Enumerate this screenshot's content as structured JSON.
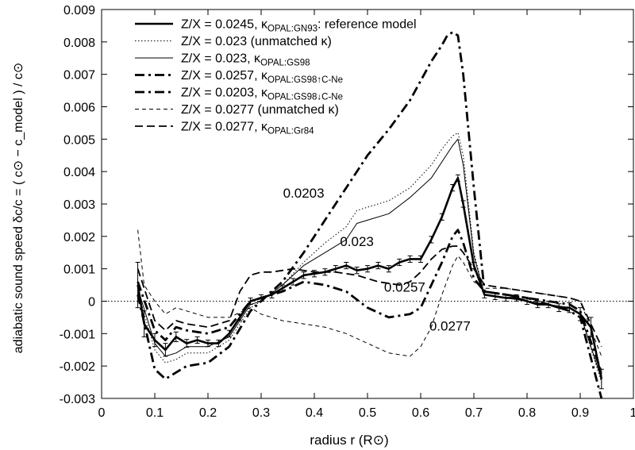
{
  "chart_data": {
    "type": "line",
    "title": "",
    "xlabel": "radius  r  (R⊙)",
    "ylabel": "adiabatic sound speed   δc/c = ( c⊙ − c_model ) / c⊙",
    "xlim": [
      0,
      1
    ],
    "ylim": [
      -0.003,
      0.009
    ],
    "x_ticks": [
      "0",
      "0.1",
      "0.2",
      "0.3",
      "0.4",
      "0.5",
      "0.6",
      "0.7",
      "0.8",
      "0.9",
      "1"
    ],
    "y_ticks": [
      "-0.003",
      "-0.002",
      "-0.001",
      "0",
      "0.001",
      "0.002",
      "0.003",
      "0.004",
      "0.005",
      "0.006",
      "0.007",
      "0.008",
      "0.009"
    ],
    "grid": false,
    "legend_position": "top-left",
    "series": [
      {
        "name": "Z/X = 0.0245, κ_OPAL:GN93: reference model",
        "legend_main": "Z/X = 0.0245, κ",
        "legend_sub": "OPAL:GN93",
        "legend_tail": ": reference model",
        "style": "thick-solid",
        "error_bars": true,
        "x": [
          0.068,
          0.08,
          0.1,
          0.12,
          0.14,
          0.16,
          0.18,
          0.2,
          0.22,
          0.24,
          0.26,
          0.28,
          0.3,
          0.32,
          0.34,
          0.36,
          0.38,
          0.4,
          0.42,
          0.44,
          0.46,
          0.48,
          0.5,
          0.52,
          0.54,
          0.56,
          0.58,
          0.6,
          0.62,
          0.64,
          0.66,
          0.67,
          0.68,
          0.7,
          0.72,
          0.74,
          0.76,
          0.78,
          0.8,
          0.82,
          0.84,
          0.86,
          0.88,
          0.9,
          0.92,
          0.94
        ],
        "y": [
          0.0005,
          -0.0007,
          -0.0012,
          -0.0015,
          -0.0011,
          -0.0013,
          -0.0012,
          -0.0013,
          -0.0013,
          -0.001,
          -0.0005,
          0.0,
          0.0001,
          0.0002,
          0.0004,
          0.0006,
          0.0008,
          0.00085,
          0.0009,
          0.001,
          0.0011,
          0.00095,
          0.001,
          0.0011,
          0.001,
          0.0012,
          0.0013,
          0.0013,
          0.0019,
          0.0026,
          0.0035,
          0.0038,
          0.003,
          0.0011,
          0.0002,
          0.00015,
          0.0001,
          0.0001,
          0.0,
          -0.0001,
          -0.0001,
          -0.0002,
          -0.0002,
          -0.0004,
          -0.0008,
          -0.0024
        ],
        "errors": [
          0.0007,
          0.0004,
          0.0002,
          0.0002,
          0.00015,
          0.00012,
          0.0001,
          0.0001,
          0.0001,
          0.0001,
          0.0001,
          0.0001,
          0.0001,
          0.0001,
          0.0001,
          0.0001,
          0.0001,
          0.0001,
          0.0001,
          0.0001,
          0.0001,
          0.0001,
          0.0001,
          0.0001,
          0.0001,
          0.0001,
          0.0001,
          0.0001,
          0.0001,
          0.0001,
          0.0001,
          0.0001,
          0.0001,
          0.0001,
          0.0001,
          0.0001,
          0.0001,
          0.0001,
          0.0001,
          0.0001,
          0.0001,
          0.00012,
          0.00015,
          0.0002,
          0.0003,
          0.0003
        ]
      },
      {
        "name": "Z/X = 0.023 (unmatched κ)",
        "legend_main": "Z/X = 0.023 (unmatched κ)",
        "legend_sub": "",
        "legend_tail": "",
        "style": "dotted",
        "x": [
          0.068,
          0.1,
          0.12,
          0.14,
          0.16,
          0.2,
          0.24,
          0.28,
          0.3,
          0.34,
          0.38,
          0.42,
          0.46,
          0.48,
          0.5,
          0.54,
          0.58,
          0.62,
          0.64,
          0.66,
          0.67,
          0.68,
          0.7,
          0.72,
          0.76,
          0.8,
          0.84,
          0.88,
          0.9,
          0.94
        ],
        "y": [
          0.0003,
          -0.0015,
          -0.0019,
          -0.0018,
          -0.0016,
          -0.0016,
          -0.0012,
          -0.0002,
          0.0,
          0.0005,
          0.0012,
          0.0018,
          0.0023,
          0.0028,
          0.0029,
          0.0031,
          0.0035,
          0.0042,
          0.0047,
          0.0051,
          0.0052,
          0.0045,
          0.0015,
          0.0002,
          0.0001,
          0.0,
          -0.0001,
          -0.0002,
          -0.0004,
          -0.0025
        ]
      },
      {
        "name": "Z/X = 0.023, κ_OPAL:GS98",
        "legend_main": "Z/X = 0.023, κ",
        "legend_sub": "OPAL:GS98",
        "legend_tail": "",
        "style": "thin-solid",
        "x": [
          0.068,
          0.1,
          0.12,
          0.14,
          0.16,
          0.2,
          0.24,
          0.28,
          0.3,
          0.34,
          0.38,
          0.42,
          0.46,
          0.48,
          0.5,
          0.54,
          0.58,
          0.62,
          0.64,
          0.66,
          0.67,
          0.68,
          0.7,
          0.72,
          0.76,
          0.8,
          0.84,
          0.88,
          0.9,
          0.94
        ],
        "y": [
          0.0004,
          -0.0013,
          -0.0017,
          -0.0016,
          -0.0014,
          -0.0014,
          -0.0011,
          -0.0001,
          0.0,
          0.0005,
          0.0011,
          0.0015,
          0.0019,
          0.0024,
          0.0025,
          0.0027,
          0.0032,
          0.0038,
          0.0043,
          0.0048,
          0.005,
          0.0042,
          0.0014,
          0.0002,
          0.0001,
          0.0,
          -0.0001,
          -0.0002,
          -0.0004,
          -0.0024
        ]
      },
      {
        "name": "Z/X = 0.0257, κ_OPAL:GS98↑C-Ne",
        "legend_main": "Z/X = 0.0257, κ",
        "legend_sub": "OPAL:GS98↑C-Ne",
        "legend_tail": "",
        "style": "thick-dashdot",
        "x": [
          0.068,
          0.1,
          0.12,
          0.14,
          0.16,
          0.2,
          0.24,
          0.28,
          0.3,
          0.34,
          0.38,
          0.42,
          0.46,
          0.5,
          0.54,
          0.58,
          0.6,
          0.62,
          0.64,
          0.66,
          0.67,
          0.68,
          0.7,
          0.72,
          0.76,
          0.8,
          0.84,
          0.88,
          0.9,
          0.94
        ],
        "y": [
          0.0006,
          -0.0009,
          -0.0012,
          -0.0008,
          -0.0009,
          -0.001,
          -0.0008,
          0.0,
          0.0001,
          0.0003,
          0.0006,
          0.0005,
          0.0003,
          -0.0002,
          -0.0005,
          -0.0004,
          -0.0002,
          0.0005,
          0.0012,
          0.002,
          0.0022,
          0.0018,
          0.0007,
          0.0003,
          0.0002,
          0.0001,
          0.0,
          -0.0001,
          -0.0003,
          -0.0022
        ]
      },
      {
        "name": "Z/X = 0.0203, κ_OPAL:GS98↓C-Ne",
        "legend_main": "Z/X = 0.0203, κ",
        "legend_sub": "OPAL:GS98↓C-Ne",
        "legend_tail": "",
        "style": "thick-dashdot",
        "x": [
          0.068,
          0.1,
          0.12,
          0.14,
          0.16,
          0.2,
          0.24,
          0.28,
          0.3,
          0.34,
          0.38,
          0.42,
          0.46,
          0.5,
          0.54,
          0.58,
          0.6,
          0.62,
          0.64,
          0.65,
          0.66,
          0.67,
          0.68,
          0.7,
          0.72,
          0.76,
          0.8,
          0.84,
          0.88,
          0.9,
          0.94
        ],
        "y": [
          0.0002,
          -0.0021,
          -0.0024,
          -0.0022,
          -0.002,
          -0.0019,
          -0.0014,
          -0.0003,
          0.0,
          0.0006,
          0.0015,
          0.0025,
          0.0035,
          0.0045,
          0.0053,
          0.0062,
          0.0068,
          0.0074,
          0.0079,
          0.0082,
          0.0083,
          0.0082,
          0.007,
          0.0035,
          0.0003,
          0.0002,
          0.0001,
          -0.0001,
          -0.0003,
          -0.0005,
          -0.003
        ]
      },
      {
        "name": "Z/X = 0.0277 (unmatched κ)",
        "legend_main": "Z/X = 0.0277 (unmatched κ)",
        "legend_sub": "",
        "legend_tail": "",
        "style": "thin-dashed",
        "x": [
          0.068,
          0.08,
          0.1,
          0.12,
          0.14,
          0.16,
          0.2,
          0.24,
          0.28,
          0.3,
          0.34,
          0.38,
          0.42,
          0.46,
          0.5,
          0.54,
          0.58,
          0.6,
          0.62,
          0.64,
          0.66,
          0.67,
          0.68,
          0.7,
          0.72,
          0.76,
          0.8,
          0.84,
          0.88,
          0.9,
          0.94
        ],
        "y": [
          0.0022,
          0.0005,
          0.0,
          -0.0004,
          -0.0002,
          -0.0003,
          -0.0005,
          -0.0005,
          -0.0002,
          -0.0004,
          -0.0006,
          -0.0007,
          -0.0008,
          -0.001,
          -0.0013,
          -0.0016,
          -0.0017,
          -0.0014,
          -0.0008,
          0.0002,
          0.0011,
          0.0014,
          0.0012,
          0.0006,
          0.0004,
          0.0004,
          0.0003,
          0.0002,
          0.0001,
          0.0,
          -0.0017
        ]
      },
      {
        "name": "Z/X = 0.0277, κ_OPAL:Gr84",
        "legend_main": "Z/X = 0.0277, κ",
        "legend_sub": "OPAL:Gr84",
        "legend_tail": "",
        "style": "thick-dashed",
        "x": [
          0.068,
          0.1,
          0.12,
          0.14,
          0.16,
          0.2,
          0.24,
          0.26,
          0.28,
          0.3,
          0.32,
          0.36,
          0.4,
          0.44,
          0.48,
          0.52,
          0.56,
          0.58,
          0.6,
          0.62,
          0.64,
          0.66,
          0.67,
          0.68,
          0.7,
          0.72,
          0.76,
          0.8,
          0.84,
          0.88,
          0.9,
          0.94
        ],
        "y": [
          0.001,
          -0.0006,
          -0.0009,
          -0.0006,
          -0.0007,
          -0.0008,
          -0.0006,
          0.0003,
          0.0008,
          0.0009,
          0.0009,
          0.001,
          0.0009,
          0.0009,
          0.0008,
          0.0006,
          0.0005,
          0.0006,
          0.0009,
          0.0013,
          0.0016,
          0.0017,
          0.0017,
          0.0015,
          0.001,
          0.0005,
          0.0004,
          0.0003,
          0.0002,
          0.0001,
          0.0,
          -0.0014
        ]
      }
    ],
    "annotations": [
      {
        "text": "0.0203",
        "x": 0.38,
        "y": 0.0032
      },
      {
        "text": "0.023",
        "x": 0.48,
        "y": 0.0017
      },
      {
        "text": "0.0257",
        "x": 0.57,
        "y": 0.0003
      },
      {
        "text": "0.0277",
        "x": 0.655,
        "y": -0.0009
      }
    ],
    "reference_line": {
      "y": 0,
      "style": "dotted"
    }
  }
}
